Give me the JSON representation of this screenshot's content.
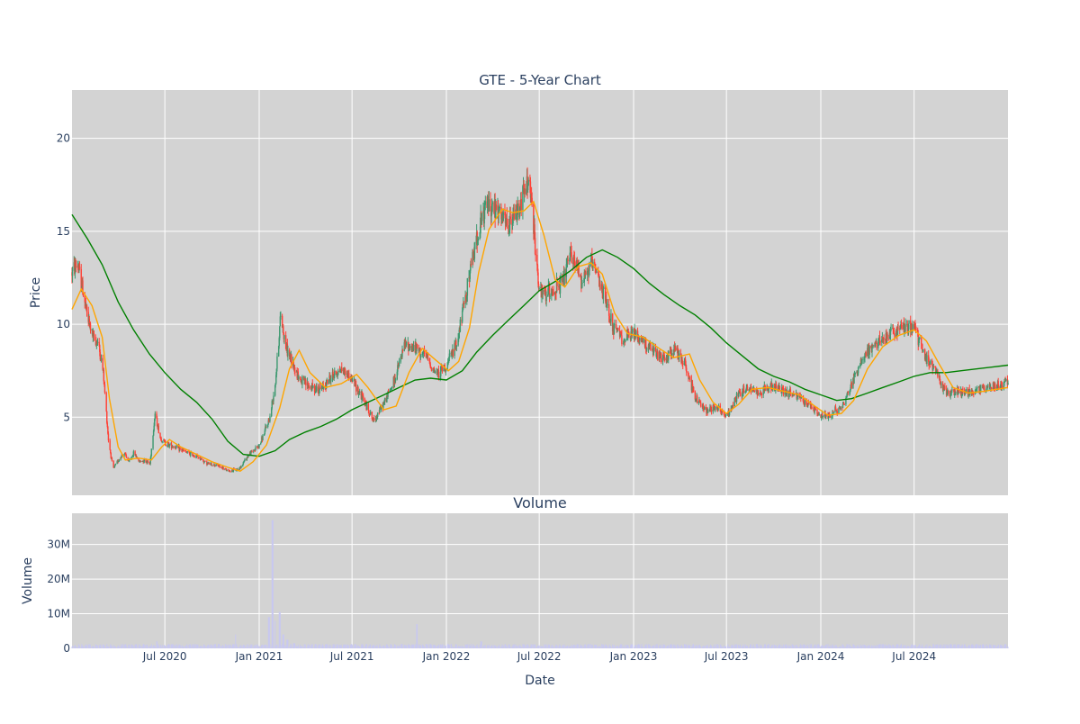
{
  "chart_data": [
    {
      "type": "candlestick",
      "title": "GTE - 5-Year Chart",
      "ylabel": "Price",
      "ylim": [
        0.8,
        22.6
      ],
      "y_ticks": [
        5,
        10,
        15,
        20
      ],
      "grid": true,
      "colors": {
        "background": "#d3d3d3",
        "grid": "#ffffff",
        "up": "#3d9970",
        "down": "#ff4136",
        "ma_short": "#ffa500",
        "ma_long": "#008000"
      },
      "price_points": [
        [
          "2020-01-02",
          12.8
        ],
        [
          "2020-01-12",
          13.3
        ],
        [
          "2020-01-22",
          12.0
        ],
        [
          "2020-02-01",
          10.4
        ],
        [
          "2020-02-12",
          9.3
        ],
        [
          "2020-02-22",
          9.0
        ],
        [
          "2020-03-03",
          7.4
        ],
        [
          "2020-03-13",
          3.8
        ],
        [
          "2020-03-22",
          2.2
        ],
        [
          "2020-04-02",
          2.7
        ],
        [
          "2020-04-12",
          3.1
        ],
        [
          "2020-04-22",
          2.6
        ],
        [
          "2020-05-02",
          3.1
        ],
        [
          "2020-05-12",
          2.6
        ],
        [
          "2020-05-22",
          2.7
        ],
        [
          "2020-06-02",
          2.5
        ],
        [
          "2020-06-12",
          5.2
        ],
        [
          "2020-06-22",
          3.9
        ],
        [
          "2020-07-02",
          3.6
        ],
        [
          "2020-07-22",
          3.4
        ],
        [
          "2020-08-12",
          3.1
        ],
        [
          "2020-09-02",
          2.9
        ],
        [
          "2020-09-22",
          2.5
        ],
        [
          "2020-10-12",
          2.4
        ],
        [
          "2020-11-02",
          2.1
        ],
        [
          "2020-11-22",
          2.2
        ],
        [
          "2020-12-12",
          3.0
        ],
        [
          "2021-01-02",
          3.5
        ],
        [
          "2021-01-22",
          5.0
        ],
        [
          "2021-02-02",
          7.0
        ],
        [
          "2021-02-12",
          10.5
        ],
        [
          "2021-02-22",
          8.8
        ],
        [
          "2021-03-05",
          8.0
        ],
        [
          "2021-03-22",
          7.0
        ],
        [
          "2021-04-12",
          6.6
        ],
        [
          "2021-05-02",
          6.5
        ],
        [
          "2021-05-22",
          7.2
        ],
        [
          "2021-06-12",
          7.6
        ],
        [
          "2021-07-02",
          7.0
        ],
        [
          "2021-07-22",
          6.0
        ],
        [
          "2021-08-12",
          4.8
        ],
        [
          "2021-09-02",
          5.8
        ],
        [
          "2021-09-22",
          7.0
        ],
        [
          "2021-10-12",
          8.9
        ],
        [
          "2021-11-02",
          8.7
        ],
        [
          "2021-11-22",
          8.3
        ],
        [
          "2021-12-12",
          7.3
        ],
        [
          "2022-01-02",
          7.8
        ],
        [
          "2022-01-22",
          9.0
        ],
        [
          "2022-02-12",
          12.2
        ],
        [
          "2022-03-02",
          14.8
        ],
        [
          "2022-03-22",
          16.5
        ],
        [
          "2022-04-12",
          16.0
        ],
        [
          "2022-05-02",
          15.2
        ],
        [
          "2022-05-22",
          16.3
        ],
        [
          "2022-06-12",
          17.8
        ],
        [
          "2022-06-22",
          14.5
        ],
        [
          "2022-07-02",
          11.5
        ],
        [
          "2022-07-22",
          11.8
        ],
        [
          "2022-08-12",
          12.0
        ],
        [
          "2022-09-02",
          13.8
        ],
        [
          "2022-09-22",
          12.4
        ],
        [
          "2022-10-12",
          13.2
        ],
        [
          "2022-11-02",
          11.8
        ],
        [
          "2022-11-22",
          9.8
        ],
        [
          "2022-12-12",
          9.2
        ],
        [
          "2023-01-02",
          9.5
        ],
        [
          "2023-01-22",
          9.0
        ],
        [
          "2023-02-12",
          8.4
        ],
        [
          "2023-03-02",
          8.1
        ],
        [
          "2023-03-22",
          8.7
        ],
        [
          "2023-04-12",
          7.8
        ],
        [
          "2023-05-02",
          6.0
        ],
        [
          "2023-05-22",
          5.4
        ],
        [
          "2023-06-12",
          5.6
        ],
        [
          "2023-07-02",
          5.0
        ],
        [
          "2023-07-22",
          6.2
        ],
        [
          "2023-08-12",
          6.6
        ],
        [
          "2023-09-02",
          6.3
        ],
        [
          "2023-09-22",
          6.7
        ],
        [
          "2023-10-12",
          6.5
        ],
        [
          "2023-11-02",
          6.3
        ],
        [
          "2023-11-22",
          6.0
        ],
        [
          "2023-12-12",
          5.6
        ],
        [
          "2024-01-02",
          5.0
        ],
        [
          "2024-01-22",
          5.2
        ],
        [
          "2024-02-12",
          5.6
        ],
        [
          "2024-03-02",
          6.8
        ],
        [
          "2024-03-22",
          8.2
        ],
        [
          "2024-04-12",
          8.8
        ],
        [
          "2024-05-02",
          9.2
        ],
        [
          "2024-05-22",
          9.6
        ],
        [
          "2024-06-12",
          9.9
        ],
        [
          "2024-07-02",
          9.8
        ],
        [
          "2024-07-22",
          8.2
        ],
        [
          "2024-08-12",
          7.6
        ],
        [
          "2024-09-02",
          6.2
        ],
        [
          "2024-09-22",
          6.4
        ],
        [
          "2024-10-12",
          6.3
        ],
        [
          "2024-11-02",
          6.5
        ],
        [
          "2024-11-22",
          6.6
        ],
        [
          "2024-12-12",
          6.7
        ],
        [
          "2024-12-31",
          6.9
        ]
      ],
      "ma_short": [
        [
          "2020-01-02",
          10.8
        ],
        [
          "2020-01-20",
          11.9
        ],
        [
          "2020-02-10",
          11.0
        ],
        [
          "2020-03-01",
          9.3
        ],
        [
          "2020-03-15",
          6.0
        ],
        [
          "2020-04-01",
          3.4
        ],
        [
          "2020-04-15",
          2.7
        ],
        [
          "2020-05-10",
          2.8
        ],
        [
          "2020-06-05",
          2.7
        ],
        [
          "2020-06-25",
          3.4
        ],
        [
          "2020-07-10",
          3.8
        ],
        [
          "2020-08-01",
          3.4
        ],
        [
          "2020-09-01",
          3.0
        ],
        [
          "2020-10-01",
          2.6
        ],
        [
          "2020-11-01",
          2.3
        ],
        [
          "2020-11-25",
          2.1
        ],
        [
          "2020-12-20",
          2.6
        ],
        [
          "2021-01-15",
          3.5
        ],
        [
          "2021-02-10",
          5.5
        ],
        [
          "2021-03-01",
          7.6
        ],
        [
          "2021-03-20",
          8.6
        ],
        [
          "2021-04-10",
          7.4
        ],
        [
          "2021-05-10",
          6.6
        ],
        [
          "2021-06-10",
          6.8
        ],
        [
          "2021-07-10",
          7.3
        ],
        [
          "2021-08-01",
          6.6
        ],
        [
          "2021-09-01",
          5.4
        ],
        [
          "2021-09-25",
          5.6
        ],
        [
          "2021-10-20",
          7.4
        ],
        [
          "2021-11-15",
          8.7
        ],
        [
          "2021-12-10",
          8.1
        ],
        [
          "2022-01-05",
          7.5
        ],
        [
          "2022-01-25",
          8.0
        ],
        [
          "2022-02-15",
          9.8
        ],
        [
          "2022-03-05",
          12.8
        ],
        [
          "2022-03-25",
          15.1
        ],
        [
          "2022-04-20",
          16.2
        ],
        [
          "2022-05-10",
          16.0
        ],
        [
          "2022-06-01",
          16.1
        ],
        [
          "2022-06-20",
          16.6
        ],
        [
          "2022-07-10",
          14.8
        ],
        [
          "2022-08-01",
          12.4
        ],
        [
          "2022-08-20",
          12.0
        ],
        [
          "2022-09-15",
          13.1
        ],
        [
          "2022-10-10",
          13.3
        ],
        [
          "2022-11-01",
          12.7
        ],
        [
          "2022-11-25",
          10.6
        ],
        [
          "2022-12-20",
          9.5
        ],
        [
          "2023-01-20",
          9.3
        ],
        [
          "2023-02-20",
          8.7
        ],
        [
          "2023-03-20",
          8.2
        ],
        [
          "2023-04-20",
          8.4
        ],
        [
          "2023-05-10",
          7.0
        ],
        [
          "2023-06-05",
          5.8
        ],
        [
          "2023-07-01",
          5.2
        ],
        [
          "2023-07-25",
          5.7
        ],
        [
          "2023-08-20",
          6.5
        ],
        [
          "2023-09-20",
          6.6
        ],
        [
          "2023-10-20",
          6.4
        ],
        [
          "2023-11-20",
          6.2
        ],
        [
          "2023-12-20",
          5.6
        ],
        [
          "2024-01-15",
          5.1
        ],
        [
          "2024-02-10",
          5.2
        ],
        [
          "2024-03-05",
          5.9
        ],
        [
          "2024-04-01",
          7.6
        ],
        [
          "2024-05-01",
          8.8
        ],
        [
          "2024-06-01",
          9.4
        ],
        [
          "2024-07-01",
          9.7
        ],
        [
          "2024-07-25",
          9.1
        ],
        [
          "2024-08-20",
          7.8
        ],
        [
          "2024-09-15",
          6.6
        ],
        [
          "2024-10-15",
          6.3
        ],
        [
          "2024-11-15",
          6.4
        ],
        [
          "2024-12-31",
          6.6
        ]
      ],
      "ma_long": [
        [
          "2020-01-02",
          15.9
        ],
        [
          "2020-02-01",
          14.6
        ],
        [
          "2020-03-01",
          13.2
        ],
        [
          "2020-04-01",
          11.2
        ],
        [
          "2020-05-01",
          9.7
        ],
        [
          "2020-06-01",
          8.4
        ],
        [
          "2020-07-01",
          7.4
        ],
        [
          "2020-08-01",
          6.5
        ],
        [
          "2020-09-01",
          5.8
        ],
        [
          "2020-10-01",
          4.9
        ],
        [
          "2020-11-01",
          3.7
        ],
        [
          "2020-12-01",
          3.0
        ],
        [
          "2021-01-01",
          2.9
        ],
        [
          "2021-02-01",
          3.2
        ],
        [
          "2021-03-01",
          3.8
        ],
        [
          "2021-04-01",
          4.2
        ],
        [
          "2021-05-01",
          4.5
        ],
        [
          "2021-06-01",
          4.9
        ],
        [
          "2021-07-01",
          5.4
        ],
        [
          "2021-08-01",
          5.8
        ],
        [
          "2021-09-01",
          6.2
        ],
        [
          "2021-10-01",
          6.6
        ],
        [
          "2021-11-01",
          7.0
        ],
        [
          "2021-12-01",
          7.1
        ],
        [
          "2022-01-01",
          7.0
        ],
        [
          "2022-02-01",
          7.5
        ],
        [
          "2022-03-01",
          8.5
        ],
        [
          "2022-04-01",
          9.4
        ],
        [
          "2022-05-01",
          10.2
        ],
        [
          "2022-06-01",
          11.0
        ],
        [
          "2022-07-01",
          11.8
        ],
        [
          "2022-08-01",
          12.3
        ],
        [
          "2022-09-01",
          12.9
        ],
        [
          "2022-10-01",
          13.6
        ],
        [
          "2022-11-01",
          14.0
        ],
        [
          "2022-12-01",
          13.6
        ],
        [
          "2023-01-01",
          13.0
        ],
        [
          "2023-02-01",
          12.2
        ],
        [
          "2023-03-01",
          11.6
        ],
        [
          "2023-04-01",
          11.0
        ],
        [
          "2023-05-01",
          10.5
        ],
        [
          "2023-06-01",
          9.8
        ],
        [
          "2023-07-01",
          9.0
        ],
        [
          "2023-08-01",
          8.3
        ],
        [
          "2023-09-01",
          7.6
        ],
        [
          "2023-10-01",
          7.2
        ],
        [
          "2023-11-01",
          6.9
        ],
        [
          "2023-12-01",
          6.5
        ],
        [
          "2024-01-01",
          6.2
        ],
        [
          "2024-02-01",
          5.9
        ],
        [
          "2024-03-01",
          6.0
        ],
        [
          "2024-04-01",
          6.3
        ],
        [
          "2024-05-01",
          6.6
        ],
        [
          "2024-06-01",
          6.9
        ],
        [
          "2024-07-01",
          7.2
        ],
        [
          "2024-08-01",
          7.4
        ],
        [
          "2024-09-01",
          7.4
        ],
        [
          "2024-10-01",
          7.5
        ],
        [
          "2024-11-01",
          7.6
        ],
        [
          "2024-12-01",
          7.7
        ],
        [
          "2024-12-31",
          7.8
        ]
      ]
    },
    {
      "type": "bar",
      "title": "Volume",
      "xlabel": "Date",
      "ylabel": "Volume",
      "ylim": [
        0,
        39000000
      ],
      "y_ticks": [
        0,
        10000000,
        20000000,
        30000000
      ],
      "y_tick_labels": [
        "0",
        "10M",
        "20M",
        "30M"
      ],
      "x_range": [
        "2020-01-02",
        "2024-12-31"
      ],
      "x_ticks": [
        "2020-07-01",
        "2021-01-01",
        "2021-07-01",
        "2022-01-01",
        "2022-07-01",
        "2023-01-01",
        "2023-07-01",
        "2024-01-01",
        "2024-07-01"
      ],
      "x_tick_labels": [
        "Jul 2020",
        "Jan 2021",
        "Jul 2021",
        "Jan 2022",
        "Jul 2022",
        "Jan 2023",
        "Jul 2023",
        "Jan 2024",
        "Jul 2024"
      ],
      "grid": true,
      "bar_color": "#c8c8f0",
      "spikes": [
        [
          "2020-06-15",
          2000000
        ],
        [
          "2020-11-15",
          4000000
        ],
        [
          "2021-01-20",
          9000000
        ],
        [
          "2021-01-27",
          37000000
        ],
        [
          "2021-01-31",
          8000000
        ],
        [
          "2021-02-10",
          10500000
        ],
        [
          "2021-02-17",
          4000000
        ],
        [
          "2021-02-25",
          2500000
        ],
        [
          "2021-03-10",
          1500000
        ],
        [
          "2021-11-05",
          7000000
        ],
        [
          "2022-03-10",
          2000000
        ]
      ],
      "baseline_volume": 800000
    }
  ]
}
